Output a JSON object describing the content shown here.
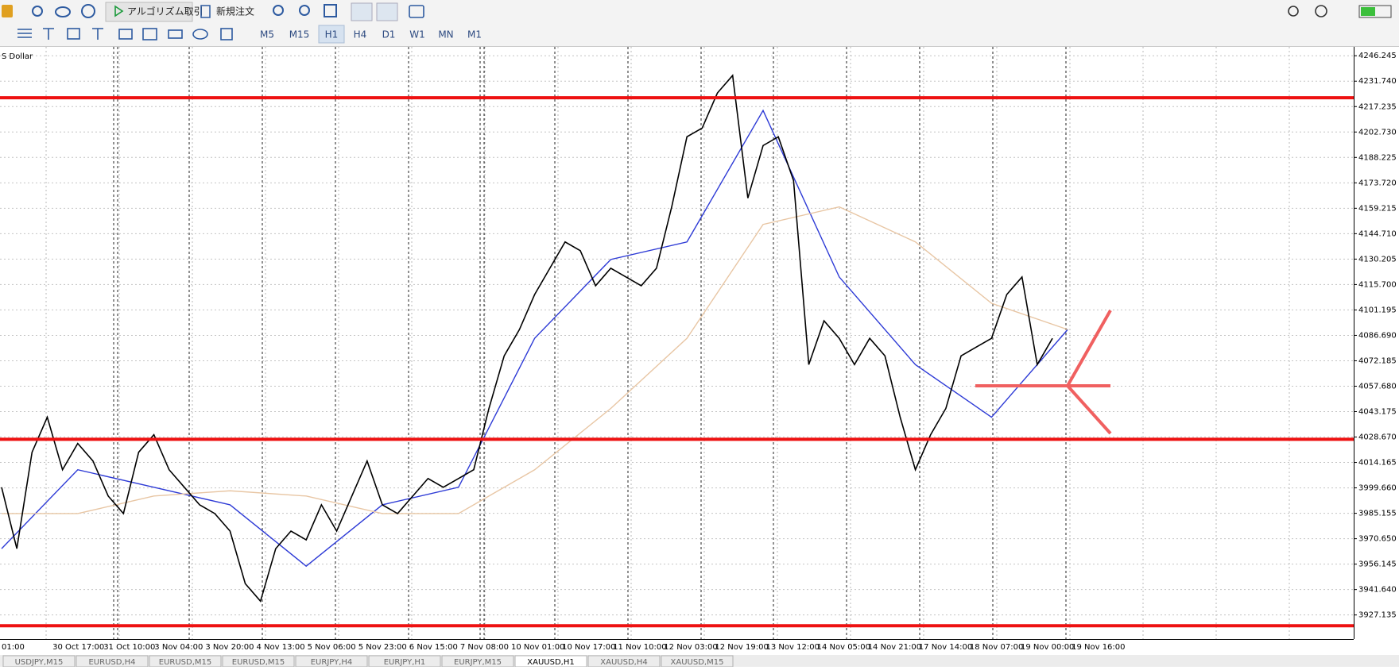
{
  "toolbar": {
    "algo_trading": "アルゴリズム取引",
    "new_order": "新規注文",
    "timeframes": [
      {
        "label": "M5",
        "active": false
      },
      {
        "label": "M15",
        "active": false
      },
      {
        "label": "H1",
        "active": true
      },
      {
        "label": "H4",
        "active": false
      },
      {
        "label": "D1",
        "active": false
      },
      {
        "label": "W1",
        "active": false
      },
      {
        "label": "MN",
        "active": false
      },
      {
        "label": "M1",
        "active": false
      }
    ]
  },
  "chart": {
    "symbol_label": "S Dollar",
    "ylim": [
      3913.4,
      4251.33
    ],
    "yticks": [
      4246.245,
      {
        "value": 4231.74,
        "label": "4231.740"
      },
      4217.235,
      {
        "value": 4202.73,
        "label": "4202.730"
      },
      4188.225,
      {
        "value": 4173.72,
        "label": "4173.720"
      },
      4159.215,
      {
        "value": 4144.71,
        "label": "4144.710"
      },
      4130.205,
      {
        "value": 4115.7,
        "label": "4115.700"
      },
      4101.195,
      {
        "value": 4086.69,
        "label": "4086.690"
      },
      4072.185,
      {
        "value": 4057.68,
        "label": "4057.680"
      },
      4043.175,
      {
        "value": 4028.67,
        "label": "4028.670"
      },
      4014.165,
      {
        "value": 3999.66,
        "label": "3999.660"
      },
      3985.155,
      {
        "value": 3970.65,
        "label": "3970.650"
      },
      3956.145,
      {
        "value": 3941.64,
        "label": "3941.640"
      },
      3927.135
    ],
    "time_labels": [
      "01:00",
      "30 Oct 17:00",
      "31 Oct 10:00",
      "3 Nov 04:00",
      "3 Nov 20:00",
      "4 Nov 13:00",
      "5 Nov 06:00",
      "5 Nov 23:00",
      "6 Nov 15:00",
      "7 Nov 08:00",
      "10 Nov 01:00",
      "10 Nov 17:00",
      "11 Nov 10:00",
      "12 Nov 03:00",
      "12 Nov 19:00",
      "13 Nov 12:00",
      "14 Nov 05:00",
      "14 Nov 21:00",
      "17 Nov 14:00",
      "18 Nov 07:00",
      "19 Nov 00:00",
      "19 Nov 16:00"
    ],
    "price": {
      "color": "#000000",
      "values": [
        4000,
        3965,
        4020,
        4040,
        4010,
        4025,
        4015,
        3995,
        3985,
        4020,
        4030,
        4010,
        4000,
        3990,
        3985,
        3975,
        3945,
        3935,
        3965,
        3975,
        3970,
        3990,
        3975,
        3995,
        4015,
        3990,
        3985,
        3995,
        4005,
        4000,
        4005,
        4010,
        4045,
        4075,
        4090,
        4110,
        4125,
        4140,
        4135,
        4115,
        4125,
        4120,
        4115,
        4125,
        4160,
        4200,
        4205,
        4225,
        4235,
        4165,
        4195,
        4200,
        4175,
        4070,
        4095,
        4085,
        4070,
        4085,
        4075,
        4040,
        4010,
        4030,
        4045,
        4075,
        4080,
        4085,
        4110,
        4120,
        4070,
        4085
      ]
    },
    "moving_averages": [
      {
        "color": "#2e3bd6",
        "x": [
          0,
          5,
          10,
          15,
          20,
          25,
          30,
          35,
          40,
          45,
          50,
          55,
          60,
          65,
          70
        ],
        "values": [
          3965,
          4010,
          4000,
          3990,
          3955,
          3990,
          4000,
          4085,
          4130,
          4140,
          4215,
          4120,
          4070,
          4040,
          4090
        ]
      },
      {
        "color": "#e8c6a4",
        "x": [
          0,
          5,
          10,
          15,
          20,
          25,
          30,
          35,
          40,
          45,
          50,
          55,
          60,
          65,
          70
        ],
        "values": [
          3985,
          3985,
          3995,
          3998,
          3995,
          3985,
          3985,
          4010,
          4045,
          4085,
          4150,
          4160,
          4140,
          4105,
          4090
        ]
      }
    ],
    "levels": {
      "color": "#ee1111",
      "values": [
        4222.3,
        4027.4,
        3921.0
      ]
    }
  },
  "tabs": [
    {
      "label": "USDJPY,M15",
      "active": false
    },
    {
      "label": "EURUSD,H4",
      "active": false
    },
    {
      "label": "EURUSD,M15",
      "active": false
    },
    {
      "label": "EURUSD,M15",
      "active": false
    },
    {
      "label": "EURJPY,H4",
      "active": false
    },
    {
      "label": "EURJPY,H1",
      "active": false
    },
    {
      "label": "EURJPY,M15",
      "active": false
    },
    {
      "label": "XAUUSD,H1",
      "active": true
    },
    {
      "label": "XAUUSD,H4",
      "active": false
    },
    {
      "label": "XAUUSD,M15",
      "active": false
    }
  ]
}
